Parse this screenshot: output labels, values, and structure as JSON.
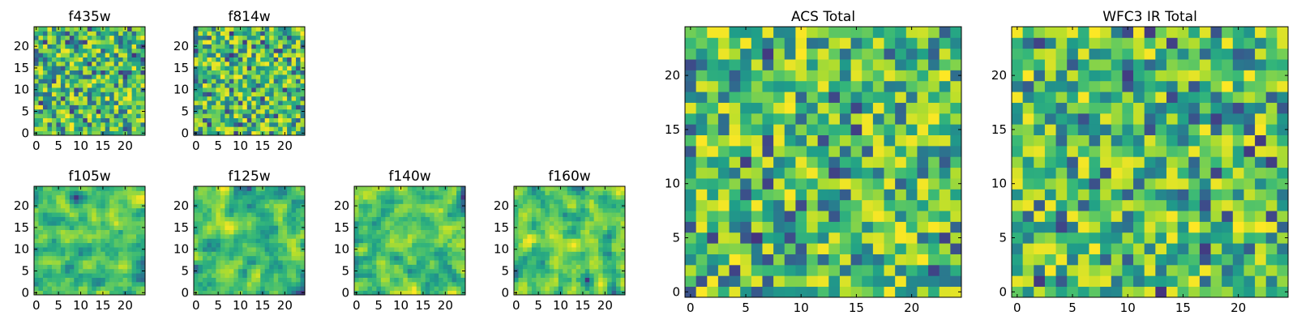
{
  "chart_data": [
    {
      "type": "heatmap",
      "title": "f435w",
      "xlim": [
        0,
        24
      ],
      "ylim": [
        0,
        24
      ],
      "xticks": [
        0,
        5,
        10,
        15,
        20
      ],
      "yticks": [
        0,
        5,
        10,
        15,
        20
      ],
      "grid": false,
      "colormap": "viridis",
      "seed": 11,
      "rows": 25,
      "cols": 25,
      "smooth": 0,
      "value_range": [
        0,
        1
      ]
    },
    {
      "type": "heatmap",
      "title": "f814w",
      "xlim": [
        0,
        24
      ],
      "ylim": [
        0,
        24
      ],
      "xticks": [
        0,
        5,
        10,
        15,
        20
      ],
      "yticks": [
        0,
        5,
        10,
        15,
        20
      ],
      "grid": false,
      "colormap": "viridis",
      "seed": 23,
      "rows": 25,
      "cols": 25,
      "smooth": 0,
      "value_range": [
        0,
        1
      ]
    },
    {
      "type": "heatmap",
      "title": "f105w",
      "xlim": [
        0,
        24
      ],
      "ylim": [
        0,
        24
      ],
      "xticks": [
        0,
        5,
        10,
        15,
        20
      ],
      "yticks": [
        0,
        5,
        10,
        15,
        20
      ],
      "grid": false,
      "colormap": "viridis",
      "seed": 37,
      "rows": 25,
      "cols": 25,
      "smooth": 1,
      "value_range": [
        0,
        1
      ]
    },
    {
      "type": "heatmap",
      "title": "f125w",
      "xlim": [
        0,
        24
      ],
      "ylim": [
        0,
        24
      ],
      "xticks": [
        0,
        5,
        10,
        15,
        20
      ],
      "yticks": [
        0,
        5,
        10,
        15,
        20
      ],
      "grid": false,
      "colormap": "viridis",
      "seed": 41,
      "rows": 25,
      "cols": 25,
      "smooth": 1,
      "value_range": [
        0,
        1
      ]
    },
    {
      "type": "heatmap",
      "title": "f140w",
      "xlim": [
        0,
        24
      ],
      "ylim": [
        0,
        24
      ],
      "xticks": [
        0,
        5,
        10,
        15,
        20
      ],
      "yticks": [
        0,
        5,
        10,
        15,
        20
      ],
      "grid": false,
      "colormap": "viridis",
      "seed": 53,
      "rows": 25,
      "cols": 25,
      "smooth": 1,
      "value_range": [
        0,
        1
      ]
    },
    {
      "type": "heatmap",
      "title": "f160w",
      "xlim": [
        0,
        24
      ],
      "ylim": [
        0,
        24
      ],
      "xticks": [
        0,
        5,
        10,
        15,
        20
      ],
      "yticks": [
        0,
        5,
        10,
        15,
        20
      ],
      "grid": false,
      "colormap": "viridis",
      "seed": 67,
      "rows": 25,
      "cols": 25,
      "smooth": 1,
      "value_range": [
        0,
        1
      ]
    },
    {
      "type": "heatmap",
      "title": "ACS Total",
      "xlim": [
        0,
        24
      ],
      "ylim": [
        0,
        24
      ],
      "xticks": [
        0,
        5,
        10,
        15,
        20
      ],
      "yticks": [
        0,
        5,
        10,
        15,
        20
      ],
      "grid": false,
      "colormap": "viridis",
      "seed": 79,
      "rows": 25,
      "cols": 25,
      "smooth": 0,
      "value_range": [
        0,
        1
      ]
    },
    {
      "type": "heatmap",
      "title": "WFC3 IR Total",
      "xlim": [
        0,
        24
      ],
      "ylim": [
        0,
        24
      ],
      "xticks": [
        0,
        5,
        10,
        15,
        20
      ],
      "yticks": [
        0,
        5,
        10,
        15,
        20
      ],
      "grid": false,
      "colormap": "viridis",
      "seed": 97,
      "rows": 25,
      "cols": 25,
      "smooth": 0,
      "value_range": [
        0,
        1
      ]
    }
  ]
}
